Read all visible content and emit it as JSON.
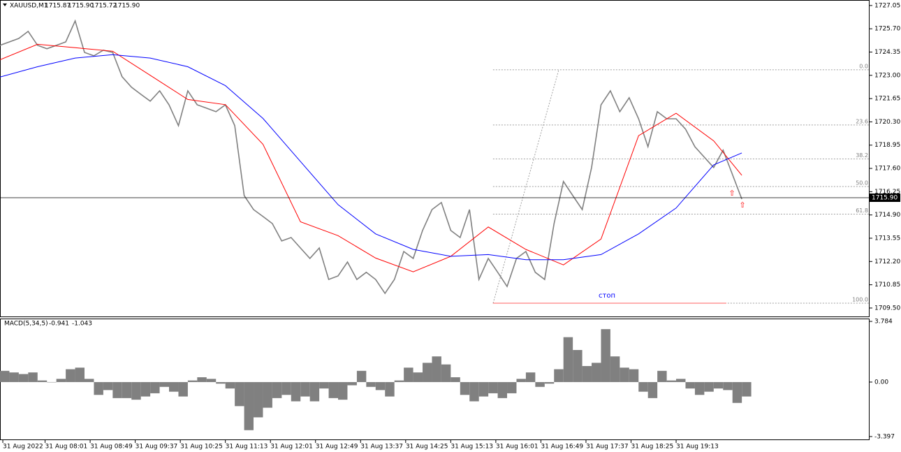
{
  "chart_data": [
    {
      "type": "line",
      "title": "XAUUSD,M1",
      "ohlc": [
        1715.87,
        1715.9,
        1715.72,
        1715.9
      ],
      "ohlc_labels": [
        "1715.87",
        "1715.90",
        "1715.72",
        "1715.90"
      ],
      "xlim": [
        0,
        926
      ],
      "ylim": [
        1709.01,
        1727.37
      ],
      "yticks": [
        1727.05,
        {
          "value": 1725.7,
          "label": "1725.70"
        },
        1724.35,
        {
          "value": 1723,
          "label": "1723.00"
        },
        1721.65,
        {
          "value": 1720.3,
          "label": "1720.30"
        },
        1718.95,
        {
          "value": 1717.6,
          "label": "1717.60"
        },
        1716.25,
        {
          "value": 1714.9,
          "label": "1714.90"
        },
        1713.55,
        {
          "value": 1712.2,
          "label": "1712.20"
        },
        1710.85,
        {
          "value": 1709.5,
          "label": "1709.50"
        }
      ],
      "last_price": {
        "value": 1715.9,
        "label": "1715.90"
      },
      "series": [
        {
          "color": "#808080",
          "x": [
            0,
            10,
            20,
            30,
            40,
            50,
            60,
            70,
            80,
            90,
            100,
            110,
            120,
            130,
            140,
            150,
            160,
            170,
            180,
            190,
            200,
            210,
            220,
            230,
            240,
            250,
            260,
            270,
            280,
            290,
            300,
            310,
            320,
            330,
            340,
            350,
            360,
            370,
            380,
            390,
            400,
            410,
            420,
            430,
            440,
            450,
            460,
            470,
            480,
            490,
            500,
            510,
            520,
            530,
            540,
            550,
            560,
            570,
            580,
            590,
            600,
            610,
            620,
            630,
            640,
            650,
            660,
            670,
            680,
            690,
            700,
            710,
            720,
            730,
            740,
            750,
            760,
            770,
            780,
            790
          ],
          "values": [
            1724.74,
            1724.94,
            1725.14,
            1725.55,
            1724.74,
            1724.54,
            1724.74,
            1724.94,
            1726.16,
            1724.33,
            1724.13,
            1724.46,
            1724.33,
            1722.92,
            1722.31,
            1721.9,
            1721.5,
            1722.1,
            1721.29,
            1720.08,
            1722.1,
            1721.29,
            1721.09,
            1720.89,
            1721.29,
            1720.08,
            1716.02,
            1715.21,
            1714.81,
            1714.4,
            1713.39,
            1713.59,
            1712.98,
            1712.38,
            1712.98,
            1711.16,
            1711.36,
            1712.17,
            1711.16,
            1711.57,
            1711.16,
            1710.35,
            1711.16,
            1712.78,
            1712.38,
            1714.0,
            1715.21,
            1715.62,
            1714.0,
            1713.59,
            1715.21,
            1711.16,
            1712.38,
            1711.57,
            1710.75,
            1712.38,
            1712.78,
            1711.57,
            1711.16,
            1714.4,
            1716.84,
            1716.02,
            1715.21,
            1717.65,
            1721.29,
            1722.1,
            1720.89,
            1721.7,
            1720.48,
            1718.86,
            1720.89,
            1720.48,
            1720.48,
            1719.88,
            1718.86,
            1718.25,
            1717.65,
            1718.66,
            1717.24,
            1715.82
          ]
        },
        {
          "color": "#ff0000",
          "x": [
            0,
            40,
            80,
            120,
            160,
            200,
            240,
            280,
            320,
            360,
            400,
            440,
            480,
            520,
            560,
            600,
            640,
            680,
            720,
            760,
            790
          ],
          "values": [
            1723.9,
            1724.8,
            1724.6,
            1724.4,
            1723.0,
            1721.6,
            1721.3,
            1719.0,
            1714.5,
            1713.7,
            1712.4,
            1711.6,
            1712.5,
            1714.2,
            1712.9,
            1712.0,
            1713.5,
            1719.5,
            1720.8,
            1719.2,
            1717.2
          ]
        },
        {
          "color": "#0000ff",
          "x": [
            0,
            40,
            80,
            120,
            160,
            200,
            240,
            280,
            320,
            360,
            400,
            440,
            480,
            520,
            560,
            600,
            640,
            680,
            720,
            760,
            790
          ],
          "values": [
            1722.9,
            1723.5,
            1724.0,
            1724.2,
            1724.0,
            1723.5,
            1722.4,
            1720.5,
            1718.0,
            1715.5,
            1713.8,
            1712.9,
            1712.5,
            1712.6,
            1712.3,
            1712.3,
            1712.6,
            1713.8,
            1715.3,
            1717.8,
            1718.5
          ]
        }
      ],
      "fib": {
        "start": 525,
        "color": "#a0a0a0",
        "levels": [
          {
            "name": "0.0",
            "price": 1723.32
          },
          {
            "name": "23.6",
            "price": 1720.12
          },
          {
            "name": "38.2",
            "price": 1718.15
          },
          {
            "name": "50.0",
            "price": 1716.55
          },
          {
            "name": "61.8",
            "price": 1714.95
          },
          {
            "name": "100.0",
            "price": 1709.78
          }
        ]
      },
      "annotation": "стоп"
    },
    {
      "type": "bar",
      "title": "MACD(5,34,5)",
      "indicator_values": [
        -0.941,
        -1.043
      ],
      "xlim": [
        0,
        926
      ],
      "ylim": [
        -3.62,
        3.96
      ],
      "yticks": [
        3.784,
        {
          "value": 0,
          "label": "0.00"
        },
        -3.397
      ],
      "xticks": [
        {
          "value": 3,
          "label": "31 Aug 2022"
        },
        {
          "value": 48,
          "label": "31 Aug 08:01"
        },
        {
          "value": 96,
          "label": "31 Aug 08:49"
        },
        {
          "value": 144,
          "label": "31 Aug 09:37"
        },
        {
          "value": 192,
          "label": "31 Aug 10:25"
        },
        {
          "value": 240,
          "label": "31 Aug 11:13"
        },
        {
          "value": 288,
          "label": "31 Aug 12:01"
        },
        {
          "value": 336,
          "label": "31 Aug 12:49"
        },
        {
          "value": 384,
          "label": "31 Aug 13:37"
        },
        {
          "value": 432,
          "label": "31 Aug 14:25"
        },
        {
          "value": 480,
          "label": "31 Aug 15:13"
        },
        {
          "value": 528,
          "label": "31 Aug 16:01"
        },
        {
          "value": 576,
          "label": "31 Aug 16:49"
        },
        {
          "value": 624,
          "label": "31 Aug 17:37"
        },
        {
          "value": 672,
          "label": "31 Aug 18:25"
        },
        {
          "value": 720,
          "label": "31 Aug 19:13"
        }
      ],
      "color": "#808080",
      "x": [
        0,
        10,
        20,
        30,
        40,
        50,
        60,
        70,
        80,
        90,
        100,
        110,
        120,
        130,
        140,
        150,
        160,
        170,
        180,
        190,
        200,
        210,
        220,
        230,
        240,
        250,
        260,
        270,
        280,
        290,
        300,
        310,
        320,
        330,
        340,
        350,
        360,
        370,
        380,
        390,
        400,
        410,
        420,
        430,
        440,
        450,
        460,
        470,
        480,
        490,
        500,
        510,
        520,
        530,
        540,
        550,
        560,
        570,
        580,
        590,
        600,
        610,
        620,
        630,
        640,
        650,
        660,
        670,
        680,
        690,
        700,
        710,
        720,
        730,
        740,
        750,
        760,
        770,
        780,
        790
      ],
      "values": [
        0.7,
        0.6,
        0.5,
        0.6,
        0.1,
        0.0,
        0.2,
        0.8,
        0.9,
        0.2,
        -0.8,
        -0.5,
        -1.0,
        -1.0,
        -1.1,
        -0.9,
        -0.7,
        -0.3,
        -0.6,
        -0.9,
        0.1,
        0.3,
        0.2,
        -0.1,
        -0.4,
        -1.5,
        -3.0,
        -2.2,
        -1.6,
        -1.0,
        -0.8,
        -1.2,
        -0.9,
        -1.2,
        -0.4,
        -1.0,
        -1.1,
        -0.2,
        0.7,
        -0.3,
        -0.5,
        -0.9,
        0.1,
        0.9,
        0.6,
        1.2,
        1.6,
        1.1,
        0.3,
        -0.8,
        -1.2,
        -0.9,
        -0.7,
        -1.0,
        -0.7,
        0.2,
        0.6,
        -0.3,
        -0.1,
        0.8,
        2.8,
        2.0,
        1.0,
        1.2,
        3.3,
        1.6,
        0.9,
        0.8,
        -0.6,
        -1.0,
        0.7,
        0.1,
        0.2,
        -0.4,
        -0.8,
        -0.6,
        -0.4,
        -0.5,
        -1.3,
        -0.9
      ]
    }
  ]
}
